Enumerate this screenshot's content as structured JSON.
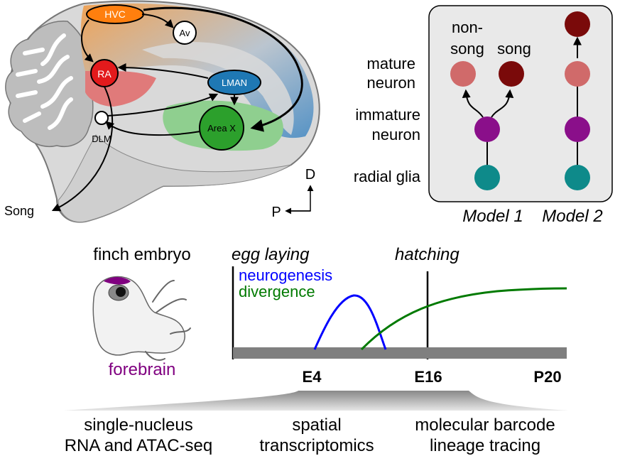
{
  "brain": {
    "regions": {
      "hvc": "HVC",
      "av": "Av",
      "ra": "RA",
      "lman": "LMAN",
      "area_x": "Area X",
      "dlm": "DLM"
    },
    "song_label": "Song",
    "axes": {
      "dorsal": "D",
      "posterior": "P"
    },
    "colors": {
      "hvc": "#ff7f0e",
      "ra": "#e31a1c",
      "lman": "#1f78b4",
      "area_x": "#2ca02c",
      "brain_gray": "#d9d9d9"
    }
  },
  "models": {
    "labels": {
      "non_song": [
        "non-",
        "song"
      ],
      "song": "song",
      "mature": [
        "mature",
        "neuron"
      ],
      "immature": [
        "immature",
        "neuron"
      ],
      "radial_glia": "radial glia"
    },
    "model_1": "Model 1",
    "model_2": "Model 2",
    "colors": {
      "non_song": "#d06a6a",
      "song": "#7a0a0a",
      "immature": "#8a0f8a",
      "radial_glia": "#0e8a8a"
    }
  },
  "embryo": {
    "title": "finch embryo",
    "region": "forebrain",
    "region_color": "#800080"
  },
  "timeline": {
    "egg_laying": "egg laying",
    "hatching": "hatching",
    "neurogenesis": "neurogenesis",
    "divergence": "divergence",
    "ticks": [
      "E4",
      "E16",
      "P20"
    ],
    "colors": {
      "neurogenesis": "#0000ff",
      "divergence": "#007a00"
    }
  },
  "methods": [
    [
      "single-nucleus",
      "RNA and ATAC-seq"
    ],
    [
      "spatial",
      "transcriptomics"
    ],
    [
      "molecular barcode",
      "lineage tracing"
    ]
  ]
}
